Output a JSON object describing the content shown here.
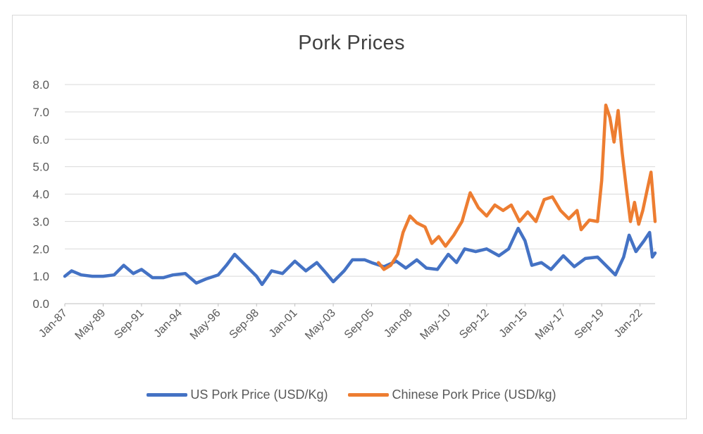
{
  "chart_data": {
    "type": "line",
    "title": "Pork Prices",
    "xlabel": "",
    "ylabel": "",
    "ylim": [
      0,
      8
    ],
    "yticks": [
      "0.0",
      "1.0",
      "2.0",
      "3.0",
      "4.0",
      "5.0",
      "6.0",
      "7.0",
      "8.0"
    ],
    "xlim": [
      "Jan-87",
      "Dec-22"
    ],
    "xticks": [
      "Jan-87",
      "May-89",
      "Sep-91",
      "Jan-94",
      "May-96",
      "Sep-98",
      "Jan-01",
      "May-03",
      "Sep-05",
      "Jan-08",
      "May-10",
      "Sep-12",
      "Jan-15",
      "May-17",
      "Sep-19",
      "Jan-22"
    ],
    "grid": true,
    "legend_position": "bottom",
    "series": [
      {
        "name": "US Pork Price (USD/Kg)",
        "color": "#4472c4",
        "points": [
          [
            "1987-01",
            1.0
          ],
          [
            "1987-06",
            1.2
          ],
          [
            "1988-01",
            1.05
          ],
          [
            "1988-09",
            1.0
          ],
          [
            "1989-05",
            1.0
          ],
          [
            "1990-01",
            1.05
          ],
          [
            "1990-08",
            1.4
          ],
          [
            "1991-03",
            1.1
          ],
          [
            "1991-09",
            1.25
          ],
          [
            "1992-05",
            0.95
          ],
          [
            "1993-01",
            0.95
          ],
          [
            "1993-08",
            1.05
          ],
          [
            "1994-05",
            1.1
          ],
          [
            "1995-01",
            0.75
          ],
          [
            "1995-08",
            0.9
          ],
          [
            "1996-05",
            1.05
          ],
          [
            "1996-11",
            1.4
          ],
          [
            "1997-05",
            1.8
          ],
          [
            "1998-03",
            1.3
          ],
          [
            "1998-09",
            1.0
          ],
          [
            "1999-01",
            0.7
          ],
          [
            "1999-08",
            1.2
          ],
          [
            "2000-04",
            1.1
          ],
          [
            "2001-01",
            1.55
          ],
          [
            "2001-09",
            1.2
          ],
          [
            "2002-05",
            1.5
          ],
          [
            "2002-12",
            1.1
          ],
          [
            "2003-05",
            0.8
          ],
          [
            "2004-01",
            1.2
          ],
          [
            "2004-07",
            1.6
          ],
          [
            "2005-04",
            1.6
          ],
          [
            "2005-09",
            1.5
          ],
          [
            "2006-06",
            1.35
          ],
          [
            "2007-03",
            1.55
          ],
          [
            "2007-10",
            1.3
          ],
          [
            "2008-06",
            1.6
          ],
          [
            "2009-01",
            1.3
          ],
          [
            "2009-09",
            1.25
          ],
          [
            "2010-05",
            1.8
          ],
          [
            "2010-11",
            1.5
          ],
          [
            "2011-05",
            2.0
          ],
          [
            "2012-01",
            1.9
          ],
          [
            "2012-09",
            2.0
          ],
          [
            "2013-06",
            1.75
          ],
          [
            "2014-01",
            2.0
          ],
          [
            "2014-08",
            2.75
          ],
          [
            "2015-01",
            2.3
          ],
          [
            "2015-06",
            1.4
          ],
          [
            "2016-01",
            1.5
          ],
          [
            "2016-08",
            1.25
          ],
          [
            "2017-05",
            1.75
          ],
          [
            "2018-01",
            1.35
          ],
          [
            "2018-09",
            1.65
          ],
          [
            "2019-06",
            1.7
          ],
          [
            "2020-03",
            1.25
          ],
          [
            "2020-07",
            1.05
          ],
          [
            "2021-01",
            1.7
          ],
          [
            "2021-05",
            2.5
          ],
          [
            "2021-10",
            1.9
          ],
          [
            "2022-04",
            2.3
          ],
          [
            "2022-08",
            2.6
          ],
          [
            "2022-10",
            1.7
          ],
          [
            "2022-12",
            1.85
          ]
        ]
      },
      {
        "name": "Chinese Pork Price (USD/kg)",
        "color": "#ed7d31",
        "points": [
          [
            "2006-02",
            1.5
          ],
          [
            "2006-06",
            1.25
          ],
          [
            "2006-11",
            1.4
          ],
          [
            "2007-04",
            1.8
          ],
          [
            "2007-08",
            2.6
          ],
          [
            "2008-01",
            3.2
          ],
          [
            "2008-06",
            2.95
          ],
          [
            "2008-12",
            2.8
          ],
          [
            "2009-05",
            2.2
          ],
          [
            "2009-10",
            2.45
          ],
          [
            "2010-03",
            2.1
          ],
          [
            "2010-09",
            2.5
          ],
          [
            "2011-03",
            3.0
          ],
          [
            "2011-09",
            4.05
          ],
          [
            "2012-03",
            3.5
          ],
          [
            "2012-09",
            3.2
          ],
          [
            "2013-03",
            3.6
          ],
          [
            "2013-09",
            3.4
          ],
          [
            "2014-03",
            3.6
          ],
          [
            "2014-09",
            3.0
          ],
          [
            "2015-03",
            3.35
          ],
          [
            "2015-09",
            3.0
          ],
          [
            "2016-03",
            3.8
          ],
          [
            "2016-09",
            3.9
          ],
          [
            "2017-03",
            3.4
          ],
          [
            "2017-09",
            3.1
          ],
          [
            "2018-03",
            3.4
          ],
          [
            "2018-06",
            2.7
          ],
          [
            "2018-12",
            3.05
          ],
          [
            "2019-06",
            3.0
          ],
          [
            "2019-09",
            4.5
          ],
          [
            "2019-12",
            7.25
          ],
          [
            "2020-03",
            6.8
          ],
          [
            "2020-06",
            5.9
          ],
          [
            "2020-09",
            7.05
          ],
          [
            "2020-12",
            5.5
          ],
          [
            "2021-03",
            4.2
          ],
          [
            "2021-06",
            3.0
          ],
          [
            "2021-09",
            3.7
          ],
          [
            "2021-12",
            2.9
          ],
          [
            "2022-03",
            3.4
          ],
          [
            "2022-06",
            4.1
          ],
          [
            "2022-09",
            4.8
          ],
          [
            "2022-12",
            3.0
          ]
        ]
      }
    ]
  }
}
